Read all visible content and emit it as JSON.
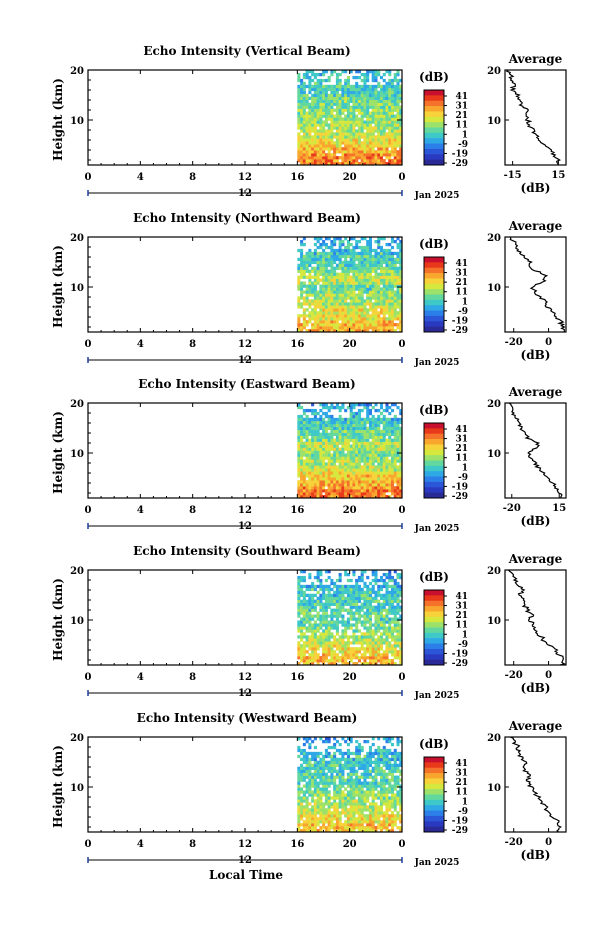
{
  "x_axis_label": "Local Time",
  "date_label": "Jan 2025",
  "colorbar_unit": "(dB)",
  "average_title": "Average",
  "average_xlabel": "(dB)",
  "height_label": "Height (km)",
  "colorbar": {
    "ticks": [
      "41",
      "31",
      "21",
      "11",
      "1",
      "-9",
      "-19",
      "-29"
    ],
    "colors": [
      "#c8102e",
      "#e83a1a",
      "#f4722a",
      "#f9a62e",
      "#f7d23a",
      "#d6e83e",
      "#9ce26a",
      "#62d89e",
      "#3fc8c8",
      "#2fa8e6",
      "#2c7fe8",
      "#2c56d8",
      "#2a3ac0",
      "#2a2a96"
    ]
  },
  "chart_data": [
    {
      "type": "heatmap",
      "title": "Echo Intensity (Vertical Beam)",
      "ylabel": "Height (km)",
      "x_ticks": [
        "0",
        "4",
        "8",
        "12",
        "16",
        "20",
        "0"
      ],
      "x_ticks_lower": [
        "12"
      ],
      "y_ticks": [
        "20",
        "10"
      ],
      "xlim": [
        0,
        24
      ],
      "ylim": [
        1,
        20
      ],
      "data_start_hour": 16,
      "colorbar_ticks": [
        "41",
        "31",
        "21",
        "11",
        "1",
        "-9",
        "-19",
        "-29"
      ],
      "average": {
        "type": "line",
        "x_ticks": [
          "-15",
          "15"
        ],
        "xlim": [
          -20,
          20
        ],
        "ylim": [
          1,
          20
        ],
        "height_km": [
          1,
          2,
          3,
          4,
          5,
          6,
          7,
          8,
          9,
          10,
          11,
          12,
          13,
          14,
          15,
          16,
          17,
          18,
          19,
          20
        ],
        "db": [
          14,
          15,
          12,
          10,
          5,
          2,
          0,
          -2,
          -4,
          -5,
          -7,
          -6,
          -9,
          -10,
          -12,
          -15,
          -14,
          -17,
          -16,
          -18
        ]
      }
    },
    {
      "type": "heatmap",
      "title": "Echo Intensity (Northward Beam)",
      "ylabel": "Height (km)",
      "x_ticks": [
        "0",
        "4",
        "8",
        "12",
        "16",
        "20",
        "0"
      ],
      "x_ticks_lower": [
        "12"
      ],
      "y_ticks": [
        "20",
        "10"
      ],
      "xlim": [
        0,
        24
      ],
      "ylim": [
        1,
        20
      ],
      "data_start_hour": 16,
      "colorbar_ticks": [
        "41",
        "31",
        "21",
        "11",
        "1",
        "-9",
        "-19",
        "-29"
      ],
      "average": {
        "type": "line",
        "x_ticks": [
          "-20",
          "0"
        ],
        "xlim": [
          -25,
          10
        ],
        "ylim": [
          1,
          20
        ],
        "height_km": [
          1,
          2,
          3,
          4,
          5,
          6,
          7,
          8,
          9,
          10,
          11,
          12,
          13,
          14,
          15,
          16,
          17,
          18,
          19,
          20
        ],
        "db": [
          8,
          9,
          7,
          5,
          2,
          0,
          -2,
          -4,
          -8,
          -10,
          -3,
          -1,
          -6,
          -12,
          -10,
          -14,
          -16,
          -18,
          -20,
          -22
        ]
      }
    },
    {
      "type": "heatmap",
      "title": "Echo Intensity (Eastward Beam)",
      "ylabel": "Height (km)",
      "x_ticks": [
        "0",
        "4",
        "8",
        "12",
        "16",
        "20",
        "0"
      ],
      "x_ticks_lower": [
        "12"
      ],
      "y_ticks": [
        "20",
        "10"
      ],
      "xlim": [
        0,
        24
      ],
      "ylim": [
        1,
        20
      ],
      "data_start_hour": 16,
      "colorbar_ticks": [
        "41",
        "31",
        "21",
        "11",
        "1",
        "-9",
        "-19",
        "-29"
      ],
      "average": {
        "type": "line",
        "x_ticks": [
          "-20",
          "15"
        ],
        "xlim": [
          -25,
          20
        ],
        "ylim": [
          1,
          20
        ],
        "height_km": [
          1,
          2,
          3,
          4,
          5,
          6,
          7,
          8,
          9,
          10,
          11,
          12,
          13,
          14,
          15,
          16,
          17,
          18,
          19,
          20
        ],
        "db": [
          15,
          16,
          13,
          10,
          6,
          3,
          0,
          -3,
          -6,
          -8,
          -2,
          0,
          -8,
          -10,
          -13,
          -14,
          -17,
          -19,
          -20,
          -22
        ]
      }
    },
    {
      "type": "heatmap",
      "title": "Echo Intensity (Southward Beam)",
      "ylabel": "Height (km)",
      "x_ticks": [
        "0",
        "4",
        "8",
        "12",
        "16",
        "20",
        "0"
      ],
      "x_ticks_lower": [
        "12"
      ],
      "y_ticks": [
        "20",
        "10"
      ],
      "xlim": [
        0,
        24
      ],
      "ylim": [
        1,
        20
      ],
      "data_start_hour": 16,
      "colorbar_ticks": [
        "41",
        "31",
        "21",
        "11",
        "1",
        "-9",
        "-19",
        "-29"
      ],
      "average": {
        "type": "line",
        "x_ticks": [
          "-20",
          "0"
        ],
        "xlim": [
          -25,
          10
        ],
        "ylim": [
          1,
          20
        ],
        "height_km": [
          1,
          2,
          3,
          4,
          5,
          6,
          7,
          8,
          9,
          10,
          11,
          12,
          13,
          14,
          15,
          16,
          17,
          18,
          19,
          20
        ],
        "db": [
          8,
          9,
          6,
          4,
          0,
          -3,
          -5,
          -7,
          -9,
          -11,
          -10,
          -12,
          -14,
          -13,
          -16,
          -15,
          -18,
          -19,
          -21,
          -23
        ]
      }
    },
    {
      "type": "heatmap",
      "title": "Echo Intensity (Westward Beam)",
      "ylabel": "Height (km)",
      "x_ticks": [
        "0",
        "4",
        "8",
        "12",
        "16",
        "20",
        "0"
      ],
      "x_ticks_lower": [
        "12"
      ],
      "y_ticks": [
        "20",
        "10"
      ],
      "xlim": [
        0,
        24
      ],
      "ylim": [
        1,
        20
      ],
      "data_start_hour": 16,
      "colorbar_ticks": [
        "41",
        "31",
        "21",
        "11",
        "1",
        "-9",
        "-19",
        "-29"
      ],
      "average": {
        "type": "line",
        "x_ticks": [
          "-20",
          "0"
        ],
        "xlim": [
          -25,
          10
        ],
        "ylim": [
          1,
          20
        ],
        "height_km": [
          1,
          2,
          3,
          4,
          5,
          6,
          7,
          8,
          9,
          10,
          11,
          12,
          13,
          14,
          15,
          16,
          17,
          18,
          19,
          20
        ],
        "db": [
          6,
          7,
          5,
          3,
          0,
          -2,
          -4,
          -6,
          -8,
          -10,
          -12,
          -11,
          -13,
          -14,
          -13,
          -16,
          -18,
          -17,
          -20,
          -22
        ]
      }
    }
  ]
}
